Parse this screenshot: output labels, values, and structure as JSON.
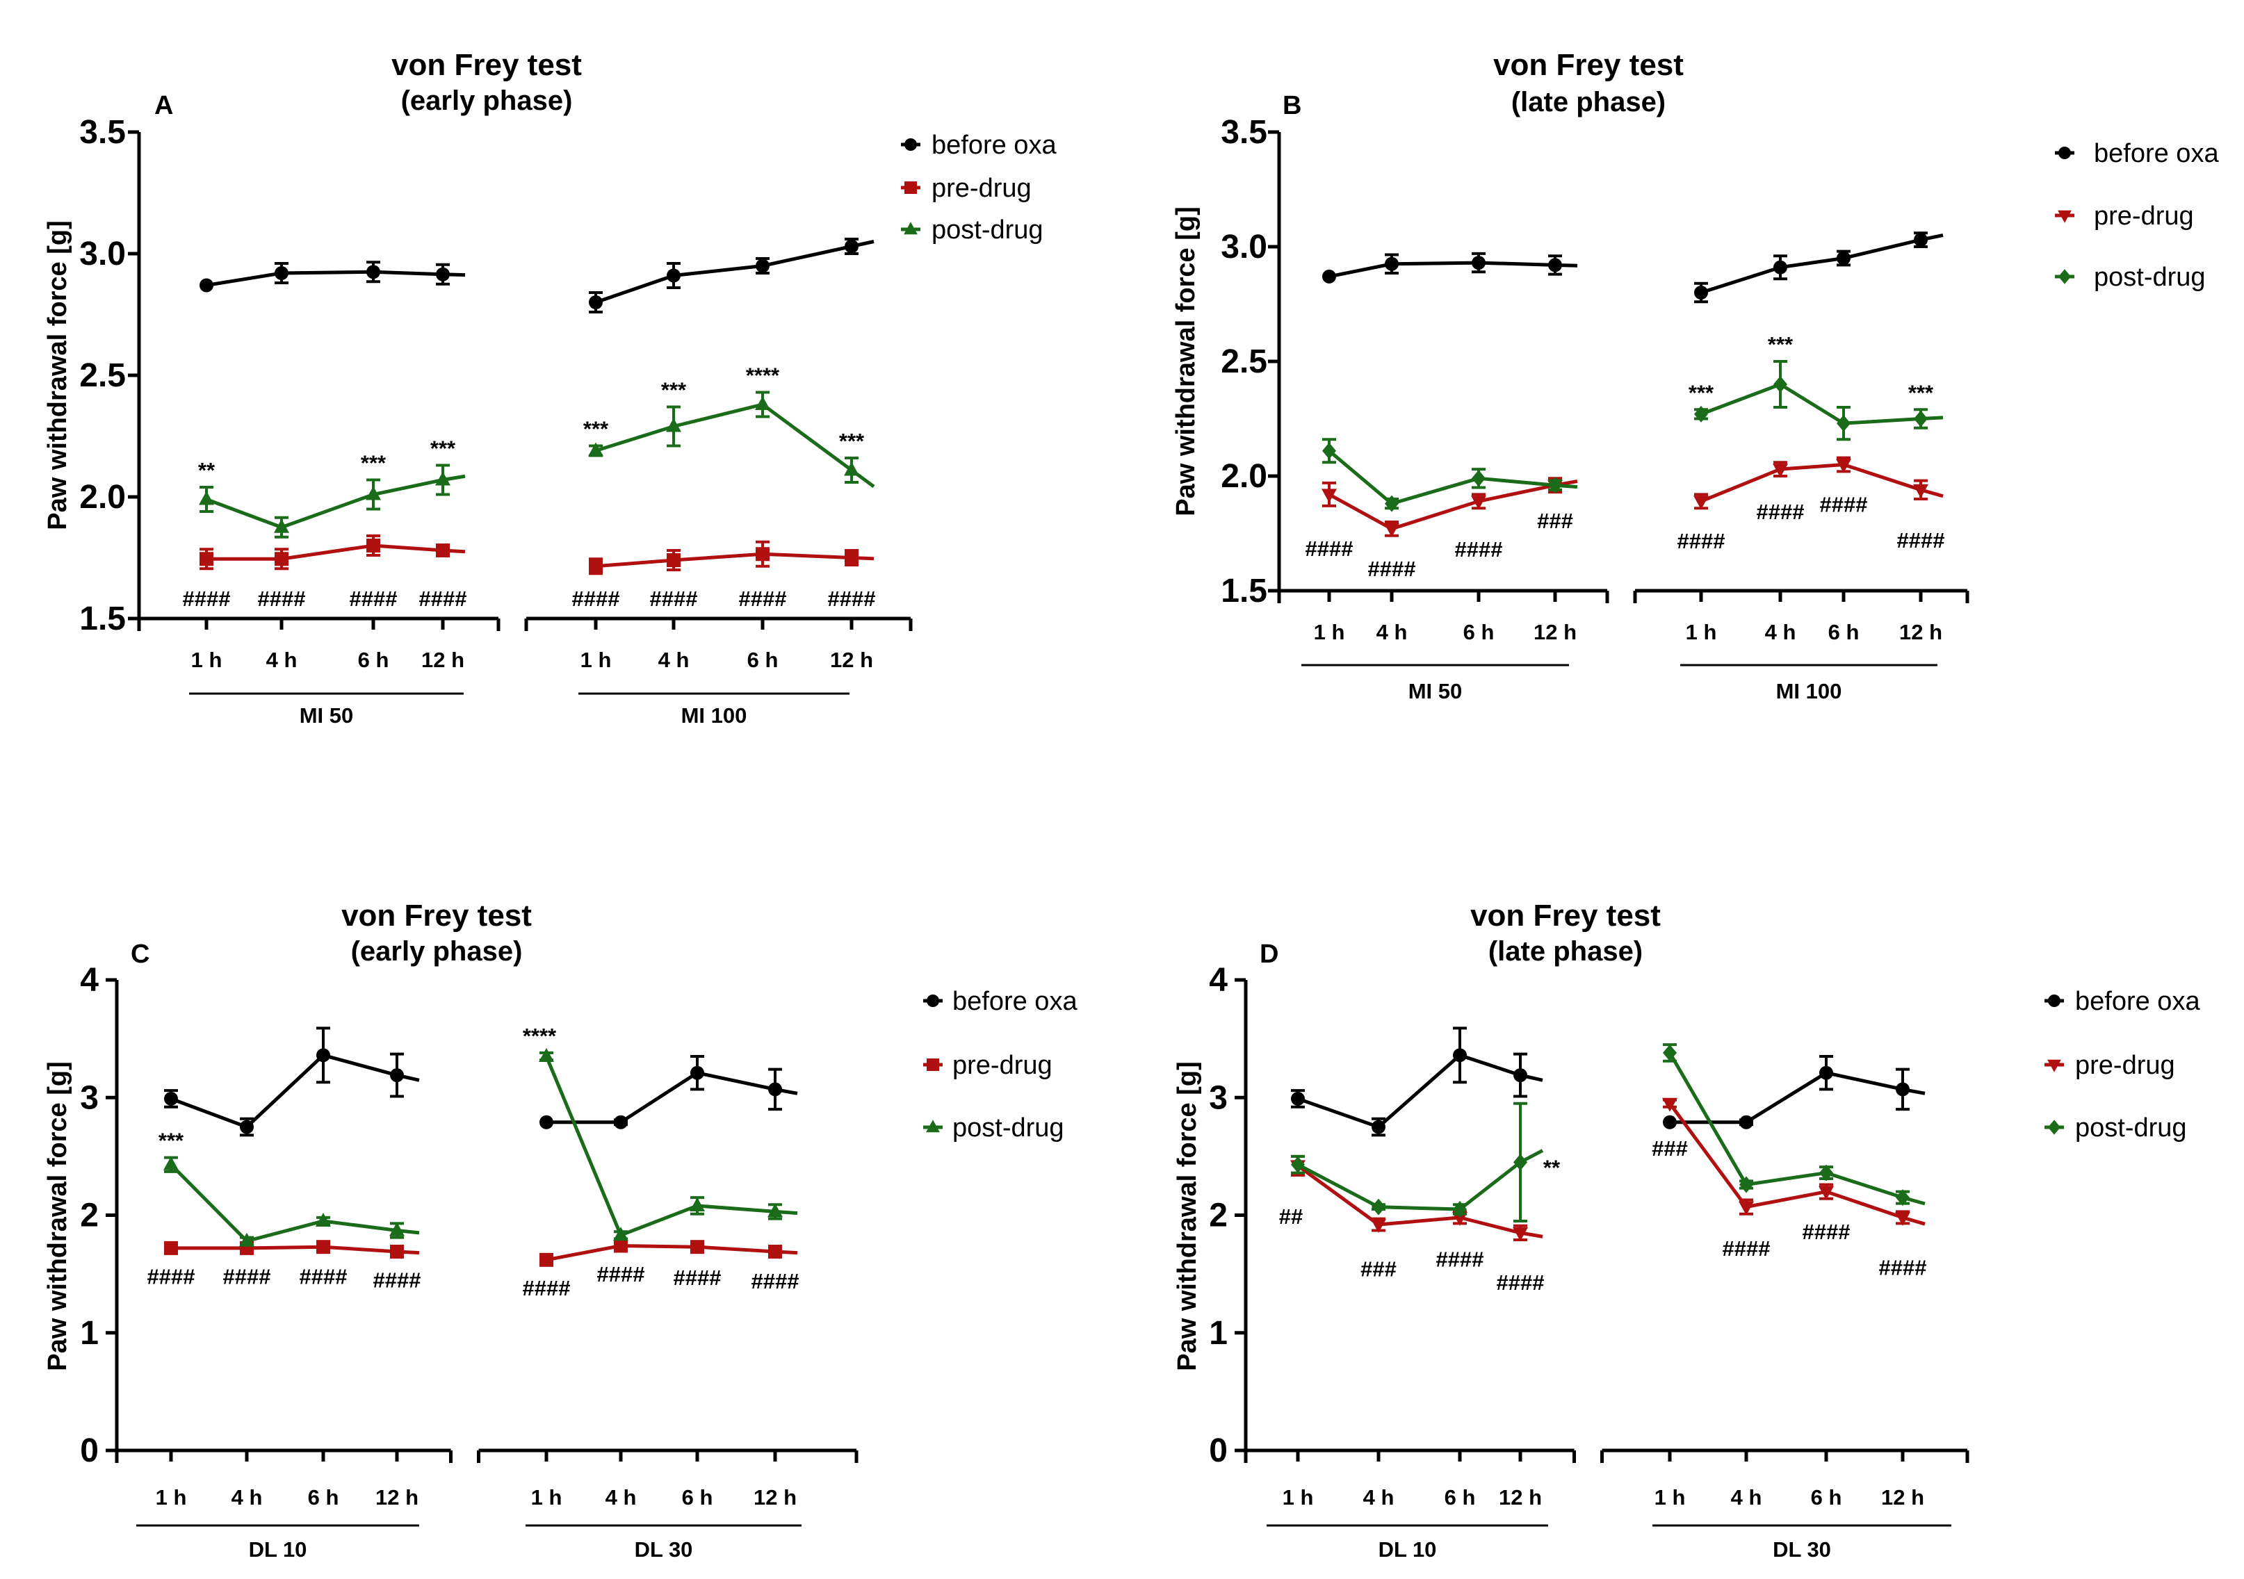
{
  "colors": {
    "before": "#000000",
    "pre": "#b01010",
    "post": "#1a6b1a"
  },
  "chart_data": [
    {
      "type": "line",
      "panel": "A",
      "title": "von Frey test",
      "subtitle": "(early phase)",
      "ylabel": "Paw withdrawal force [g]",
      "ylim": [
        1.5,
        3.5
      ],
      "yticks": [
        "1.5",
        "2.0",
        "2.5",
        "3.0",
        "3.5"
      ],
      "legend": [
        "before oxa",
        "pre-drug",
        "post-drug"
      ],
      "legend_markers": [
        "circle",
        "square",
        "triangle"
      ],
      "groups": [
        {
          "name": "MI 50",
          "x": [
            "1 h",
            "4 h",
            "6 h",
            "12 h"
          ],
          "series": [
            {
              "name": "before oxa",
              "values": [
                2.87,
                2.92,
                2.925,
                2.915
              ],
              "err": [
                0.0,
                0.04,
                0.04,
                0.04
              ]
            },
            {
              "name": "pre-drug",
              "values": [
                1.745,
                1.745,
                1.8,
                1.78
              ],
              "err": [
                0.04,
                0.04,
                0.04,
                0.02
              ]
            },
            {
              "name": "post-drug",
              "values": [
                1.99,
                1.875,
                2.01,
                2.07
              ],
              "err": [
                0.05,
                0.04,
                0.06,
                0.06
              ]
            }
          ],
          "stars": [
            "**",
            "",
            "***",
            "***"
          ],
          "hashes": [
            "####",
            "####",
            "####",
            "####"
          ]
        },
        {
          "name": "MI 100",
          "x": [
            "1 h",
            "4 h",
            "6 h",
            "12 h"
          ],
          "series": [
            {
              "name": "before oxa",
              "values": [
                2.8,
                2.91,
                2.95,
                3.03
              ],
              "err": [
                0.04,
                0.05,
                0.03,
                0.03
              ]
            },
            {
              "name": "pre-drug",
              "values": [
                1.715,
                1.74,
                1.765,
                1.75
              ],
              "err": [
                0.03,
                0.04,
                0.05,
                0.03
              ]
            },
            {
              "name": "post-drug",
              "values": [
                2.19,
                2.29,
                2.38,
                2.11
              ],
              "err": [
                0.02,
                0.08,
                0.05,
                0.05
              ]
            }
          ],
          "stars": [
            "***",
            "***",
            "****",
            "***"
          ],
          "hashes": [
            "####",
            "####",
            "####",
            "####"
          ]
        }
      ]
    },
    {
      "type": "line",
      "panel": "B",
      "title": "von Frey test",
      "subtitle": "(late phase)",
      "ylabel": "Paw withdrawal force [g]",
      "ylim": [
        1.5,
        3.5
      ],
      "yticks": [
        "1.5",
        "2.0",
        "2.5",
        "3.0",
        "3.5"
      ],
      "legend": [
        "before oxa",
        "pre-drug",
        "post-drug"
      ],
      "legend_markers": [
        "circle",
        "tri-down",
        "diamond"
      ],
      "groups": [
        {
          "name": "MI 50",
          "x": [
            "1 h",
            "4 h",
            "6 h",
            "12 h"
          ],
          "series": [
            {
              "name": "before oxa",
              "values": [
                2.87,
                2.925,
                2.93,
                2.92
              ],
              "err": [
                0.0,
                0.04,
                0.04,
                0.04
              ]
            },
            {
              "name": "pre-drug",
              "values": [
                1.92,
                1.77,
                1.89,
                1.96
              ],
              "err": [
                0.05,
                0.03,
                0.03,
                0.03
              ]
            },
            {
              "name": "post-drug",
              "values": [
                2.11,
                1.88,
                1.99,
                1.96
              ],
              "err": [
                0.05,
                0.02,
                0.04,
                0.02
              ]
            }
          ],
          "stars": [
            "",
            "",
            "",
            ""
          ],
          "hashes": [
            "####",
            "####",
            "####",
            "###"
          ]
        },
        {
          "name": "MI 100",
          "x": [
            "1 h",
            "4 h",
            "6 h",
            "12 h"
          ],
          "series": [
            {
              "name": "before oxa",
              "values": [
                2.8,
                2.91,
                2.95,
                3.03
              ],
              "err": [
                0.04,
                0.05,
                0.03,
                0.03
              ]
            },
            {
              "name": "pre-drug",
              "values": [
                1.89,
                2.03,
                2.05,
                1.94
              ],
              "err": [
                0.03,
                0.03,
                0.03,
                0.04
              ]
            },
            {
              "name": "post-drug",
              "values": [
                2.27,
                2.4,
                2.23,
                2.25
              ],
              "err": [
                0.02,
                0.1,
                0.07,
                0.04
              ]
            }
          ],
          "stars": [
            "***",
            "***",
            "",
            "***"
          ],
          "hashes": [
            "####",
            "####",
            "####",
            "####"
          ]
        }
      ]
    },
    {
      "type": "line",
      "panel": "C",
      "title": "von Frey test",
      "subtitle": "(early phase)",
      "ylabel": "Paw withdrawal force [g]",
      "ylim": [
        0,
        4
      ],
      "yticks": [
        "0",
        "1",
        "2",
        "3",
        "4"
      ],
      "legend": [
        "before oxa",
        "pre-drug",
        "post-drug"
      ],
      "legend_markers": [
        "circle",
        "square",
        "triangle"
      ],
      "groups": [
        {
          "name": "DL 10",
          "x": [
            "1 h",
            "4 h",
            "6 h",
            "12 h"
          ],
          "series": [
            {
              "name": "before oxa",
              "values": [
                2.99,
                2.75,
                3.36,
                3.19
              ],
              "err": [
                0.07,
                0.07,
                0.23,
                0.18
              ]
            },
            {
              "name": "pre-drug",
              "values": [
                1.72,
                1.72,
                1.73,
                1.69
              ],
              "err": [
                0.02,
                0.02,
                0.03,
                0.02
              ]
            },
            {
              "name": "post-drug",
              "values": [
                2.43,
                1.78,
                1.95,
                1.87
              ],
              "err": [
                0.06,
                0.03,
                0.03,
                0.06
              ]
            }
          ],
          "stars": [
            "***",
            "",
            "",
            ""
          ],
          "hashes": [
            "####",
            "####",
            "####",
            "####"
          ]
        },
        {
          "name": "DL 30",
          "x": [
            "1 h",
            "4 h",
            "6 h",
            "12 h"
          ],
          "series": [
            {
              "name": "before oxa",
              "values": [
                2.79,
                2.79,
                3.21,
                3.07
              ],
              "err": [
                0.0,
                0.02,
                0.14,
                0.17
              ]
            },
            {
              "name": "pre-drug",
              "values": [
                1.62,
                1.74,
                1.73,
                1.69
              ],
              "err": [
                0.02,
                0.02,
                0.04,
                0.03
              ]
            },
            {
              "name": "post-drug",
              "values": [
                3.35,
                1.83,
                2.08,
                2.03
              ],
              "err": [
                0.03,
                0.03,
                0.07,
                0.06
              ]
            }
          ],
          "stars": [
            "****",
            "",
            "",
            ""
          ],
          "hashes": [
            "####",
            "####",
            "####",
            "####"
          ]
        }
      ]
    },
    {
      "type": "line",
      "panel": "D",
      "title": "von Frey test",
      "subtitle": "(late phase)",
      "ylabel": "Paw withdrawal force [g]",
      "ylim": [
        0,
        4
      ],
      "yticks": [
        "0",
        "1",
        "2",
        "3",
        "4"
      ],
      "legend": [
        "before oxa",
        "pre-drug",
        "post-drug"
      ],
      "legend_markers": [
        "circle",
        "tri-down",
        "diamond"
      ],
      "groups": [
        {
          "name": "DL 10",
          "x": [
            "1 h",
            "4 h",
            "6 h",
            "12 h"
          ],
          "series": [
            {
              "name": "before oxa",
              "values": [
                2.99,
                2.75,
                3.36,
                3.19
              ],
              "err": [
                0.07,
                0.07,
                0.23,
                0.18
              ]
            },
            {
              "name": "pre-drug",
              "values": [
                2.42,
                1.92,
                1.98,
                1.85
              ],
              "err": [
                0.08,
                0.05,
                0.05,
                0.06
              ]
            },
            {
              "name": "post-drug",
              "values": [
                2.43,
                2.07,
                2.05,
                2.45
              ],
              "err": [
                0.07,
                0.02,
                0.04,
                0.5
              ]
            }
          ],
          "stars": [
            "",
            "",
            "",
            "**"
          ],
          "hashes": [
            "##",
            "###",
            "####",
            "####"
          ]
        },
        {
          "name": "DL 30",
          "x": [
            "1 h",
            "4 h",
            "6 h",
            "12 h"
          ],
          "series": [
            {
              "name": "before oxa",
              "values": [
                2.79,
                2.79,
                3.21,
                3.07
              ],
              "err": [
                0.0,
                0.02,
                0.14,
                0.17
              ]
            },
            {
              "name": "pre-drug",
              "values": [
                2.95,
                2.07,
                2.2,
                1.98
              ],
              "err": [
                0.03,
                0.06,
                0.06,
                0.05
              ]
            },
            {
              "name": "post-drug",
              "values": [
                3.38,
                2.26,
                2.36,
                2.15
              ],
              "err": [
                0.07,
                0.03,
                0.05,
                0.05
              ]
            }
          ],
          "stars": [
            "",
            "",
            "",
            ""
          ],
          "hashes": [
            "###",
            "####",
            "####",
            "####"
          ]
        }
      ]
    }
  ]
}
